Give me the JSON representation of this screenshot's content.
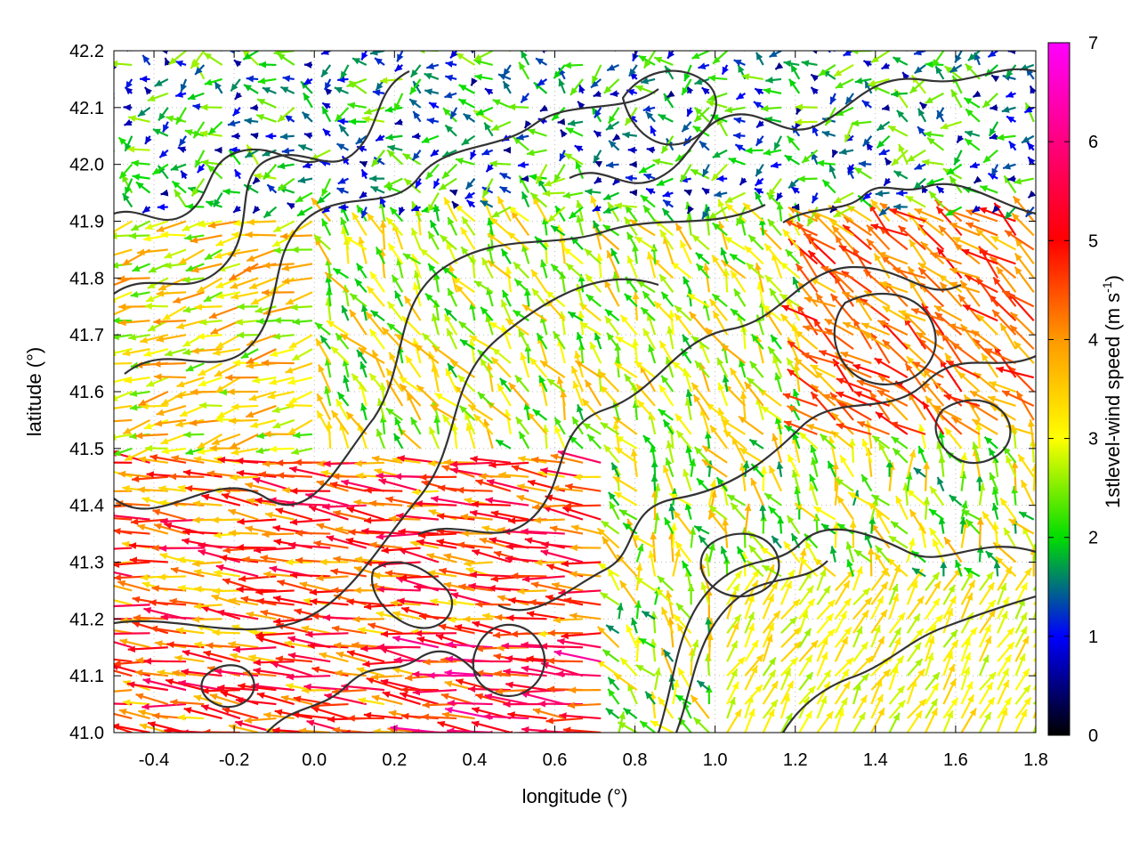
{
  "chart_data": {
    "type": "vector-field",
    "xlabel": "longitude (°)",
    "ylabel": "latitude (°)",
    "xlim": [
      -0.5,
      1.8
    ],
    "ylim": [
      41.0,
      42.2
    ],
    "xticks": [
      "-0.4",
      "-0.2",
      "0.0",
      "0.2",
      "0.4",
      "0.6",
      "0.8",
      "1.0",
      "1.2",
      "1.4",
      "1.6",
      "1.8"
    ],
    "yticks": [
      "41.0",
      "41.1",
      "41.2",
      "41.3",
      "41.4",
      "41.5",
      "41.6",
      "41.7",
      "41.8",
      "41.9",
      "42.0",
      "42.1",
      "42.2"
    ],
    "grid": true,
    "colorbar": {
      "label": "1stlevel-wind speed (m s",
      "label_sup": "-1",
      "label_end": ")",
      "range": [
        0,
        7
      ],
      "ticks": [
        "0",
        "1",
        "2",
        "3",
        "4",
        "5",
        "6",
        "7"
      ],
      "colors": [
        "#000000",
        "#0000ff",
        "#00dd00",
        "#ffff00",
        "#ff9900",
        "#ff0000",
        "#ff00ff"
      ]
    },
    "contour_color": "#333333",
    "vector_regions": [
      {
        "region": "west, lat 41.0-41.45",
        "direction": "westward",
        "speed_range": [
          3.5,
          6.5
        ]
      },
      {
        "region": "central, lat 41.45-41.9",
        "direction": "northward",
        "speed_range": [
          2.5,
          4.0
        ]
      },
      {
        "region": "north, lat 41.9-42.2",
        "direction": "variable",
        "speed_range": [
          0.5,
          2.5
        ]
      },
      {
        "region": "east, lat 41.55-41.85",
        "direction": "north-westward",
        "speed_range": [
          3.5,
          5.0
        ]
      },
      {
        "region": "southeast, lat 41.0-41.25",
        "direction": "north-eastward",
        "speed_range": [
          2.5,
          3.5
        ]
      }
    ]
  }
}
